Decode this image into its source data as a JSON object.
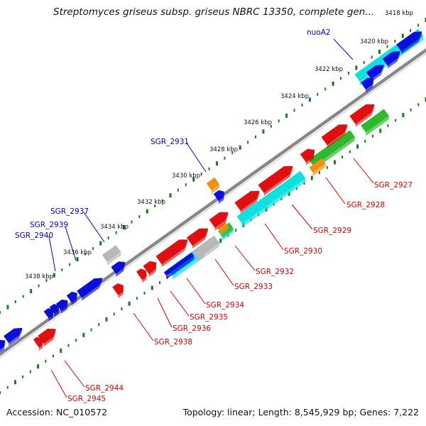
{
  "title": "Streptomyces griseus subsp. griseus NBRC 13350, complete gen...",
  "footer": {
    "accession": "Accession: NC_010572",
    "topology": "Topology: linear; Length: 8,545,929 bp; Genes: 7,222"
  },
  "ruler_ticks": [
    "3418 kbp",
    "3420 kbp",
    "3422 kbp",
    "3424 kbp",
    "3426 kbp",
    "3428 kbp",
    "3430 kbp",
    "3432 kbp",
    "3434 kbp",
    "3436 kbp",
    "3438 kbp"
  ],
  "gene_labels_top": [
    "nuoA2",
    "SGR_2931",
    "SGR_2937",
    "SGR_2939",
    "SGR_2940"
  ],
  "gene_labels_bottom": [
    "SGR_2927",
    "SGR_2928",
    "SGR_2929",
    "SGR_2930",
    "SGR_2932",
    "SGR_2933",
    "SGR_2934",
    "SGR_2935",
    "SGR_2936",
    "SGR_2938",
    "SGR_2944",
    "SGR_2945"
  ],
  "colors": {
    "label_top": "#0000cc",
    "label_bottom": "#dd0000",
    "cds_red": "#e01010",
    "cds_blue": "#0a10d8",
    "rna_cyan": "#10e0e0",
    "green": "#2db82d",
    "orange": "#f09010",
    "gray": "#b8b8b8",
    "backbone": "#888888",
    "tick": "#1e7a1e"
  }
}
